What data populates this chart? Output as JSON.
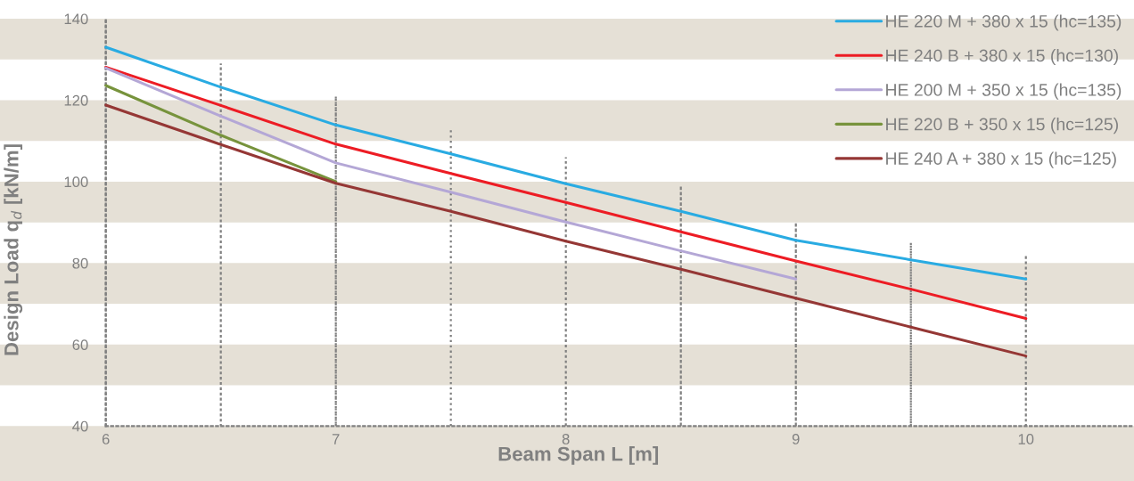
{
  "chart_data": {
    "type": "line",
    "xlabel": "Beam Span L [m]",
    "ylabel": "Design Load q$_{d}$ [kN/m]",
    "x": [
      6,
      6.5,
      7,
      7.5,
      8,
      8.5,
      9,
      9.5,
      10
    ],
    "xlim": [
      5.54,
      10.47
    ],
    "ylim": [
      26.5,
      140
    ],
    "xticks": [
      6,
      7,
      8,
      9,
      10
    ],
    "yticks": [
      40,
      60,
      80,
      100,
      120,
      140
    ],
    "bands": [
      {
        "axis": "y",
        "from": 130,
        "to": 140,
        "color": "#e5e0d6"
      },
      {
        "axis": "y",
        "from": 110,
        "to": 120,
        "color": "#e5e0d6"
      },
      {
        "axis": "y",
        "from": 90,
        "to": 100,
        "color": "#e5e0d6"
      },
      {
        "axis": "y",
        "from": 70,
        "to": 80,
        "color": "#e5e0d6"
      },
      {
        "axis": "y",
        "from": 50,
        "to": 60,
        "color": "#e5e0d6"
      },
      {
        "axis": "y",
        "from": 26.5,
        "to": 40,
        "color": "#e5e0d6"
      }
    ],
    "series": [
      {
        "type": "bar",
        "color": "#808080",
        "line_style": "dotted",
        "base": [
          40,
          40,
          40,
          40,
          40,
          40,
          40,
          40,
          40
        ],
        "values": [
          100,
          89,
          81,
          73,
          66,
          59,
          50,
          45,
          42
        ]
      },
      {
        "name": "HE 220 M + 380 x 15 (hc=135)",
        "color": "#29abe2",
        "values": [
          133.0,
          123.2,
          113.9,
          106.8,
          99.5,
          92.7,
          85.6,
          80.8,
          76.1
        ]
      },
      {
        "name": "HE 240 B + 380 x 15 (hc=130)",
        "color": "#ed1c24",
        "values": [
          128.1,
          118.7,
          109.2,
          102.0,
          94.9,
          87.7,
          80.5,
          73.6,
          66.4
        ]
      },
      {
        "name": "HE 200 M + 350 x 15 (hc=135)",
        "color": "#b4a7d6",
        "values": [
          127.9,
          116.1,
          104.6,
          97.4,
          90.1,
          83.0,
          76.1,
          null,
          null
        ]
      },
      {
        "name": "HE 220 B + 350 x 15 (hc=125)",
        "color": "#77933c",
        "values": [
          123.6,
          111.4,
          100.0,
          null,
          null,
          null,
          null,
          null,
          null
        ]
      },
      {
        "name": "HE 240 A + 380 x 15 (hc=125)",
        "color": "#953735",
        "values": [
          118.8,
          109.1,
          99.6,
          92.7,
          85.4,
          78.5,
          71.4,
          64.3,
          57.2
        ]
      }
    ],
    "legend": "top right",
    "marker": "none",
    "line_style": "solid"
  }
}
